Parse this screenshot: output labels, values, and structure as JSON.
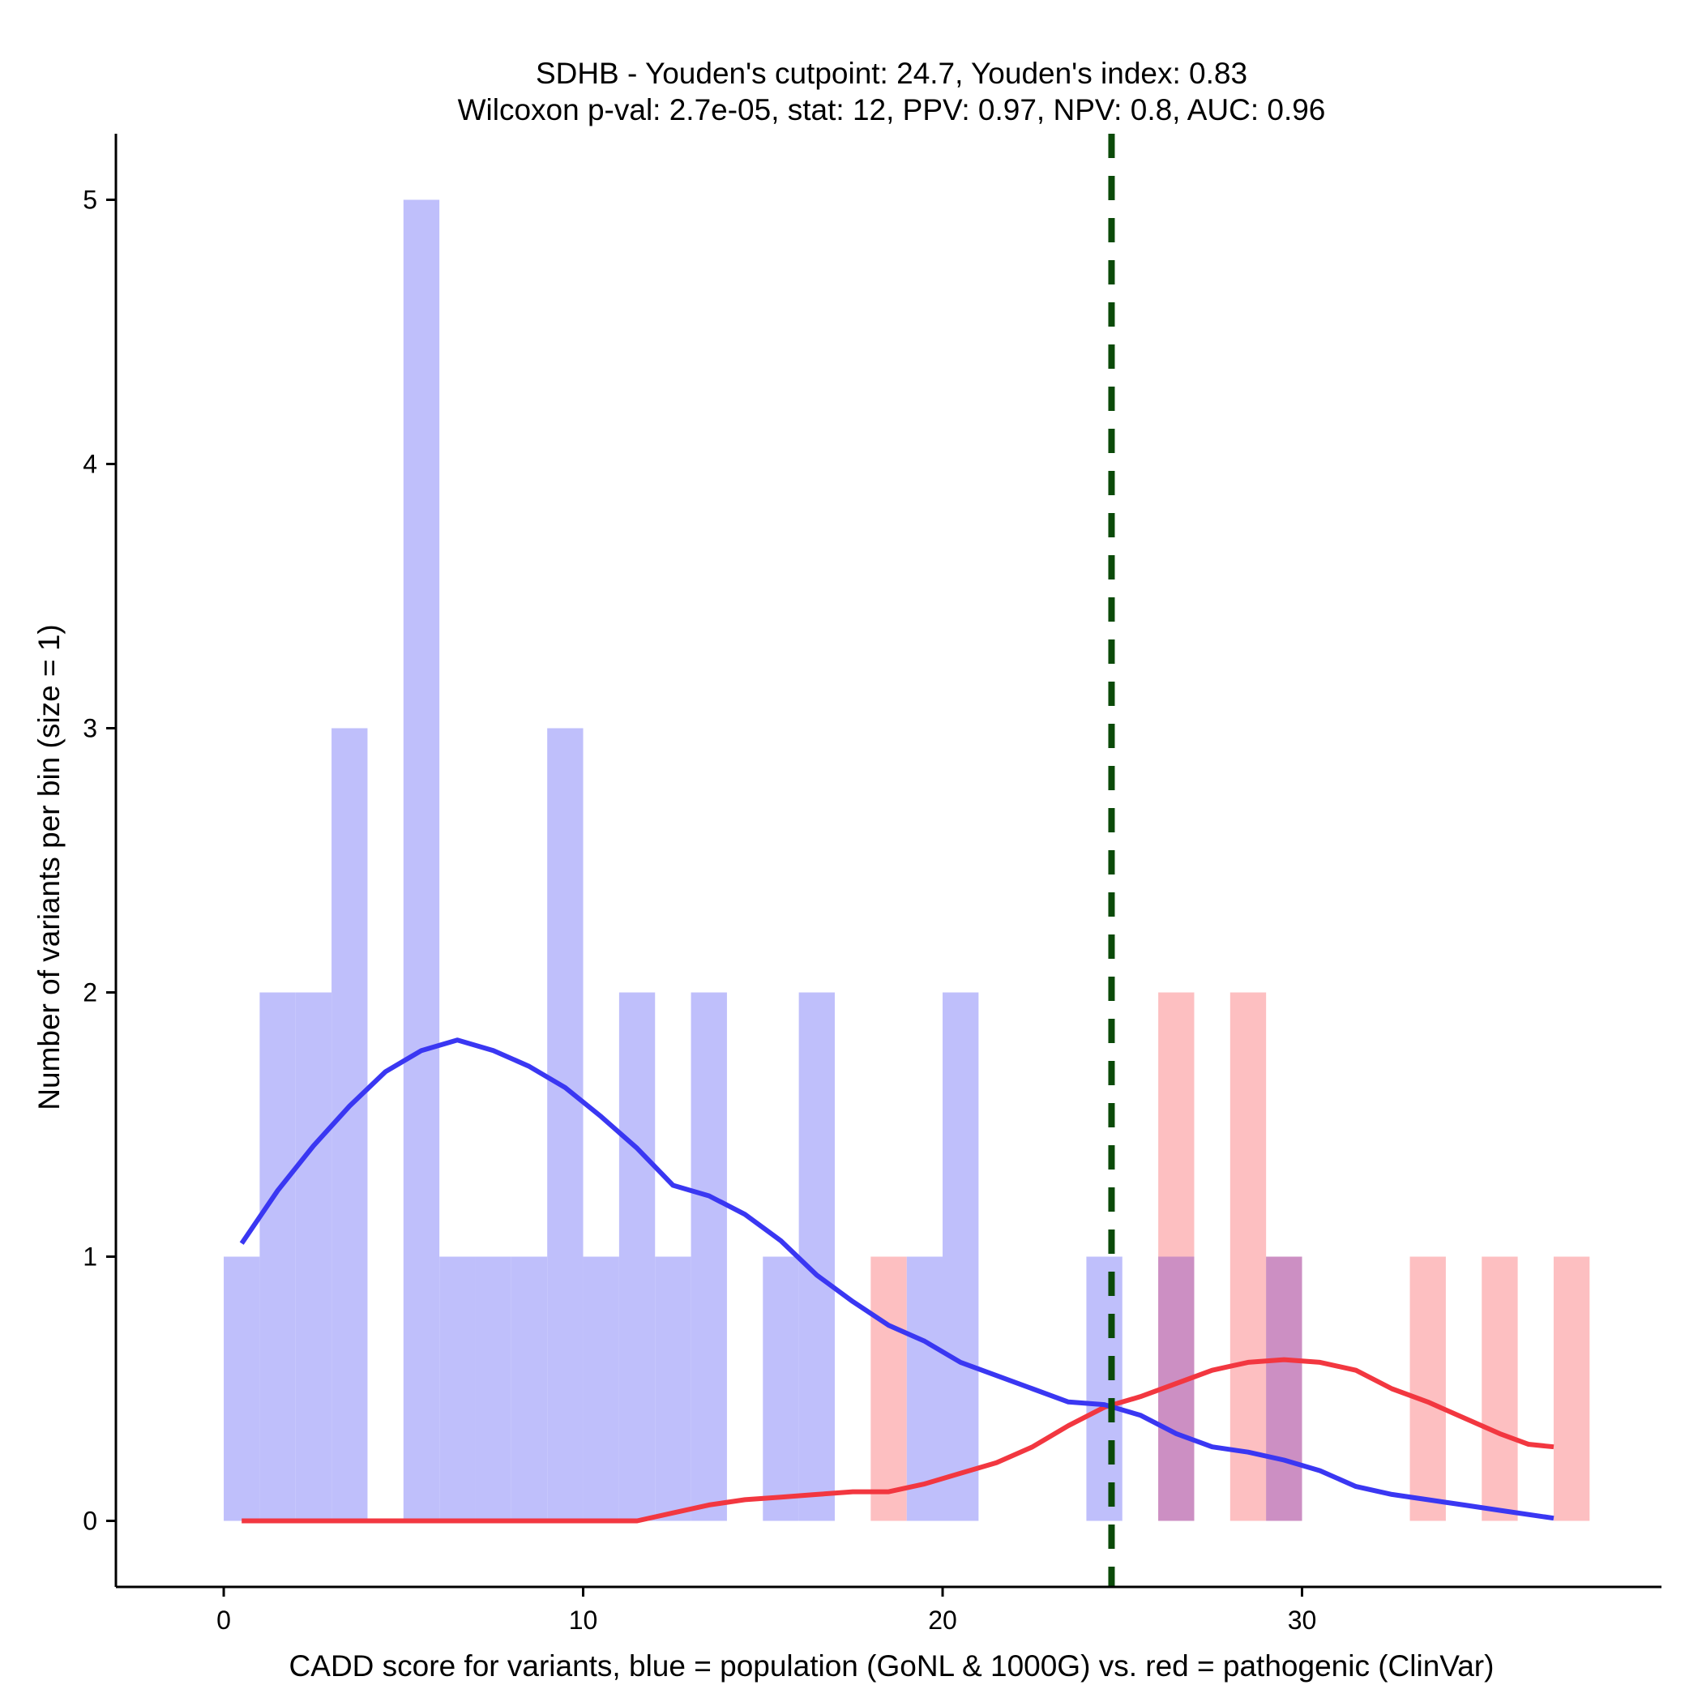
{
  "chart_data": {
    "type": "bar",
    "title_line1": "SDHB - Youden's cutpoint: 24.7, Youden's index: 0.83",
    "title_line2": "Wilcoxon p-val: 2.7e-05, stat: 12, PPV: 0.97, NPV: 0.8, AUC: 0.96",
    "xlabel": "CADD score for variants, blue = population (GoNL & 1000G) vs. red = pathogenic (ClinVar)",
    "ylabel": "Number of variants per bin (size = 1)",
    "xlim": [
      -3,
      40
    ],
    "ylim": [
      -0.25,
      5.25
    ],
    "xticks": [
      0,
      10,
      20,
      30
    ],
    "yticks": [
      0,
      1,
      2,
      3,
      4,
      5
    ],
    "bin_size": 1,
    "cutpoint": 24.7,
    "colors": {
      "population_bar": "#bfbffb",
      "pathogenic_bar": "#fdbfc1",
      "overlap_bar": "#cc8fc3",
      "population_line": "#3a37f2",
      "pathogenic_line": "#f23740",
      "cutpoint_line": "#0b4a09"
    },
    "series": [
      {
        "name": "population (GoNL & 1000G)",
        "bins": [
          {
            "start": 0,
            "count": 1
          },
          {
            "start": 1,
            "count": 2
          },
          {
            "start": 2,
            "count": 2
          },
          {
            "start": 3,
            "count": 3
          },
          {
            "start": 5,
            "count": 5
          },
          {
            "start": 6,
            "count": 1
          },
          {
            "start": 7,
            "count": 1
          },
          {
            "start": 8,
            "count": 1
          },
          {
            "start": 9,
            "count": 3
          },
          {
            "start": 10,
            "count": 1
          },
          {
            "start": 11,
            "count": 2
          },
          {
            "start": 12,
            "count": 1
          },
          {
            "start": 13,
            "count": 2
          },
          {
            "start": 15,
            "count": 1
          },
          {
            "start": 16,
            "count": 2
          },
          {
            "start": 19,
            "count": 1
          },
          {
            "start": 20,
            "count": 2
          },
          {
            "start": 24,
            "count": 1
          },
          {
            "start": 26,
            "count": 1
          },
          {
            "start": 29,
            "count": 1
          }
        ],
        "density": [
          [
            0.5,
            1.05
          ],
          [
            1.5,
            1.25
          ],
          [
            2.5,
            1.42
          ],
          [
            3.5,
            1.57
          ],
          [
            4.5,
            1.7
          ],
          [
            5.5,
            1.78
          ],
          [
            6.5,
            1.82
          ],
          [
            7.5,
            1.78
          ],
          [
            8.5,
            1.72
          ],
          [
            9.5,
            1.64
          ],
          [
            10.5,
            1.53
          ],
          [
            11.5,
            1.41
          ],
          [
            12.5,
            1.27
          ],
          [
            13.5,
            1.23
          ],
          [
            14.5,
            1.16
          ],
          [
            15.5,
            1.06
          ],
          [
            16.5,
            0.93
          ],
          [
            17.5,
            0.83
          ],
          [
            18.5,
            0.74
          ],
          [
            19.5,
            0.68
          ],
          [
            20.5,
            0.6
          ],
          [
            21.5,
            0.55
          ],
          [
            22.5,
            0.5
          ],
          [
            23.5,
            0.45
          ],
          [
            24.5,
            0.44
          ],
          [
            25.5,
            0.4
          ],
          [
            26.5,
            0.33
          ],
          [
            27.5,
            0.28
          ],
          [
            28.5,
            0.26
          ],
          [
            29.5,
            0.23
          ],
          [
            30.5,
            0.19
          ],
          [
            31.5,
            0.13
          ],
          [
            32.5,
            0.1
          ],
          [
            33.5,
            0.08
          ],
          [
            34.5,
            0.06
          ],
          [
            35.5,
            0.04
          ],
          [
            37,
            0.01
          ]
        ]
      },
      {
        "name": "pathogenic (ClinVar)",
        "bins": [
          {
            "start": 18,
            "count": 1
          },
          {
            "start": 26,
            "count": 2
          },
          {
            "start": 28,
            "count": 2
          },
          {
            "start": 29,
            "count": 1
          },
          {
            "start": 33,
            "count": 1
          },
          {
            "start": 35,
            "count": 1
          },
          {
            "start": 37,
            "count": 1
          }
        ],
        "density": [
          [
            0.5,
            0
          ],
          [
            5,
            0
          ],
          [
            10,
            0
          ],
          [
            11.5,
            0
          ],
          [
            12.5,
            0.03
          ],
          [
            13.5,
            0.06
          ],
          [
            14.5,
            0.08
          ],
          [
            15.5,
            0.09
          ],
          [
            16.5,
            0.1
          ],
          [
            17.5,
            0.11
          ],
          [
            18.5,
            0.11
          ],
          [
            19.5,
            0.14
          ],
          [
            20.5,
            0.18
          ],
          [
            21.5,
            0.22
          ],
          [
            22.5,
            0.28
          ],
          [
            23.5,
            0.36
          ],
          [
            24.5,
            0.43
          ],
          [
            25.5,
            0.47
          ],
          [
            26.5,
            0.52
          ],
          [
            27.5,
            0.57
          ],
          [
            28.5,
            0.6
          ],
          [
            29.5,
            0.61
          ],
          [
            30.5,
            0.6
          ],
          [
            31.5,
            0.57
          ],
          [
            32.5,
            0.5
          ],
          [
            33.5,
            0.45
          ],
          [
            34.5,
            0.39
          ],
          [
            35.5,
            0.33
          ],
          [
            36.3,
            0.29
          ],
          [
            37,
            0.28
          ]
        ]
      }
    ]
  }
}
